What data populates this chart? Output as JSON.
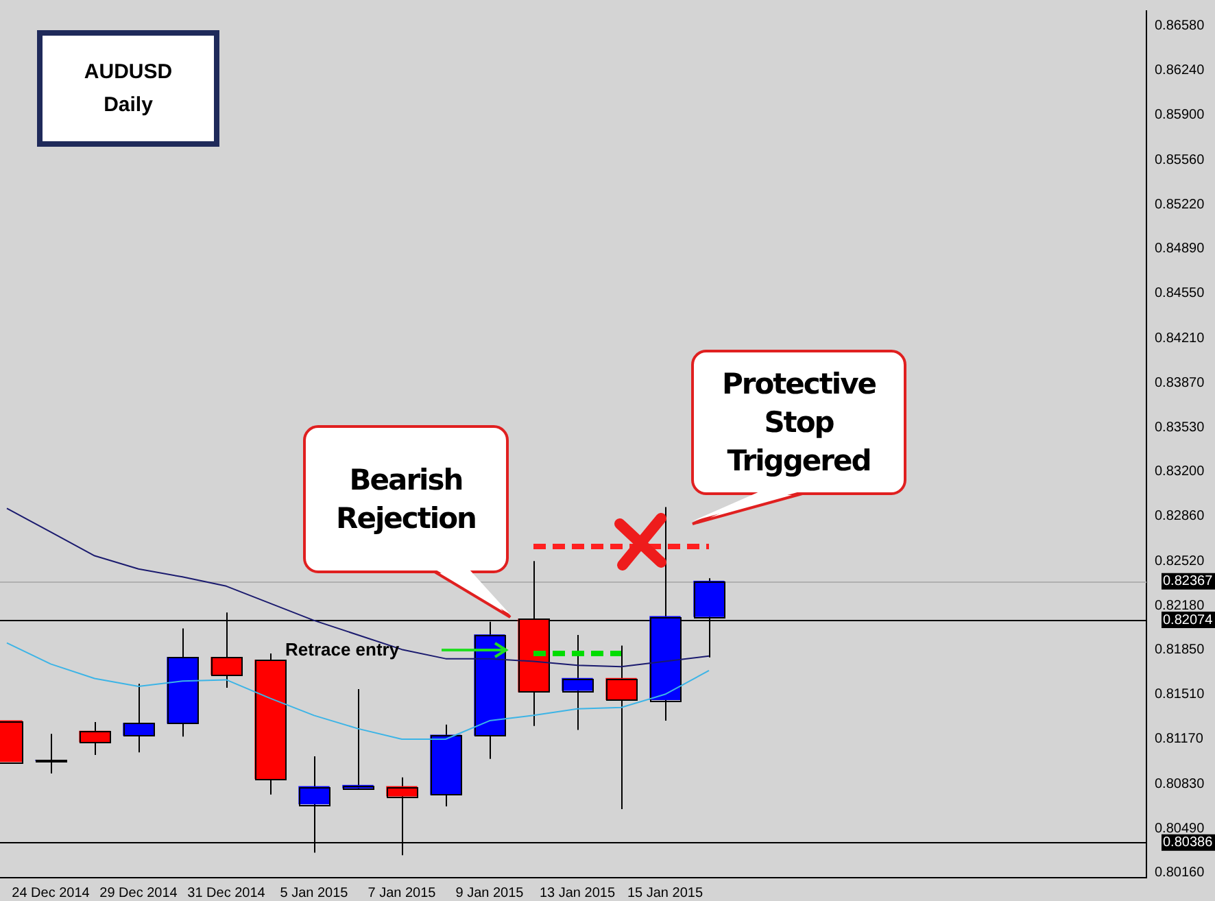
{
  "chart_data": {
    "type": "candlestick",
    "title": "AUDUSD Daily",
    "categories": [
      null,
      "24 Dec 2014",
      null,
      "29 Dec 2014",
      null,
      "31 Dec 2014",
      null,
      "5 Jan 2015",
      null,
      "7 Jan 2015",
      null,
      "9 Jan 2015",
      null,
      "13 Jan 2015",
      null,
      "15 Jan 2015",
      null
    ],
    "ohlc": [
      [
        0.8131,
        0.8131,
        0.81,
        0.81
      ],
      [
        0.8101,
        0.8121,
        0.8091,
        0.8101
      ],
      [
        0.8123,
        0.813,
        0.8105,
        0.8115
      ],
      [
        0.812,
        0.8159,
        0.8107,
        0.8129
      ],
      [
        0.8129,
        0.8201,
        0.8119,
        0.8179
      ],
      [
        0.8179,
        0.8213,
        0.8156,
        0.8166
      ],
      [
        0.8177,
        0.8182,
        0.8075,
        0.8087
      ],
      [
        0.8068,
        0.8104,
        0.8031,
        0.8081
      ],
      [
        0.808,
        0.8155,
        0.8079,
        0.8082
      ],
      [
        0.8081,
        0.8088,
        0.8029,
        0.8074
      ],
      [
        0.8075,
        0.8128,
        0.8066,
        0.812
      ],
      [
        0.812,
        0.8206,
        0.8102,
        0.8196
      ],
      [
        0.8208,
        0.8252,
        0.8127,
        0.8153
      ],
      [
        0.8154,
        0.8196,
        0.8124,
        0.8163
      ],
      [
        0.8163,
        0.8188,
        0.8064,
        0.8147
      ],
      [
        0.8147,
        0.8293,
        0.8131,
        0.821
      ],
      [
        0.821,
        0.8239,
        0.8179,
        0.82367
      ]
    ],
    "colors": [
      "#ff0000",
      "#0000ff",
      "#ff0000",
      "#0000ff",
      "#0000ff",
      "#ff0000",
      "#ff0000",
      "#0000ff",
      "#0000ff",
      "#ff0000",
      "#0000ff",
      "#0000ff",
      "#ff0000",
      "#0000ff",
      "#ff0000",
      "#0000ff",
      "#0000ff"
    ],
    "series": [
      {
        "type": "line",
        "color": "#1a1a6e",
        "values": [
          0.8292,
          0.8274,
          0.8256,
          0.8246,
          0.824,
          0.8233,
          0.822,
          0.8207,
          0.8196,
          0.8185,
          0.8178,
          0.8178,
          0.8176,
          0.8173,
          0.8172,
          0.8176,
          0.818
        ]
      },
      {
        "type": "line",
        "color": "#3cb4e6",
        "values": [
          0.819,
          0.8174,
          0.8163,
          0.8157,
          0.8161,
          0.8162,
          0.8148,
          0.8135,
          0.8125,
          0.8117,
          0.8117,
          0.8131,
          0.8135,
          0.814,
          0.8141,
          0.8151,
          0.8169
        ]
      },
      {
        "type": "line",
        "color": "#00dd00",
        "line_style": "dotted",
        "values": [
          null,
          null,
          null,
          null,
          null,
          null,
          null,
          null,
          null,
          null,
          null,
          null,
          0.8182,
          0.8182,
          0.8182,
          null,
          null
        ]
      },
      {
        "type": "line",
        "color": "#ff2020",
        "line_style": "dotted",
        "values": [
          null,
          null,
          null,
          null,
          null,
          null,
          null,
          null,
          null,
          null,
          null,
          null,
          0.8263,
          0.8263,
          0.8263,
          0.8263,
          0.8263
        ]
      }
    ],
    "ylim": [
      0.8012,
      0.8669
    ],
    "yticks": [
      {
        "value": 0.8658,
        "label": "0.86580"
      },
      {
        "value": 0.8624,
        "label": "0.86240"
      },
      {
        "value": 0.859,
        "label": "0.85900"
      },
      {
        "value": 0.8556,
        "label": "0.85560"
      },
      {
        "value": 0.8522,
        "label": "0.85220"
      },
      {
        "value": 0.8489,
        "label": "0.84890"
      },
      {
        "value": 0.8455,
        "label": "0.84550"
      },
      {
        "value": 0.8421,
        "label": "0.84210"
      },
      {
        "value": 0.8387,
        "label": "0.83870"
      },
      {
        "value": 0.8353,
        "label": "0.83530"
      },
      {
        "value": 0.832,
        "label": "0.83200"
      },
      {
        "value": 0.8286,
        "label": "0.82860"
      },
      {
        "value": 0.8252,
        "label": "0.82520"
      },
      {
        "value": 0.8218,
        "label": "0.82180"
      },
      {
        "value": 0.8185,
        "label": "0.81850"
      },
      {
        "value": 0.8151,
        "label": "0.81510"
      },
      {
        "value": 0.8117,
        "label": "0.81170"
      },
      {
        "value": 0.8083,
        "label": "0.80830"
      },
      {
        "value": 0.8049,
        "label": "0.80490"
      },
      {
        "value": 0.8016,
        "label": "0.80160"
      }
    ],
    "ref_lines": [
      {
        "axis": "y",
        "value": 0.82367,
        "label": "0.82367",
        "color": "#b0b0b0"
      },
      {
        "axis": "y",
        "value": 0.82074,
        "label": "0.82074",
        "color": "#000000"
      },
      {
        "axis": "y",
        "value": 0.80386,
        "label": "0.80386",
        "color": "#000000"
      }
    ],
    "annotations": [
      "Retrace entry",
      "Bearish Rejection",
      "Protective Stop Triggered"
    ],
    "grid": false,
    "legend": false
  }
}
